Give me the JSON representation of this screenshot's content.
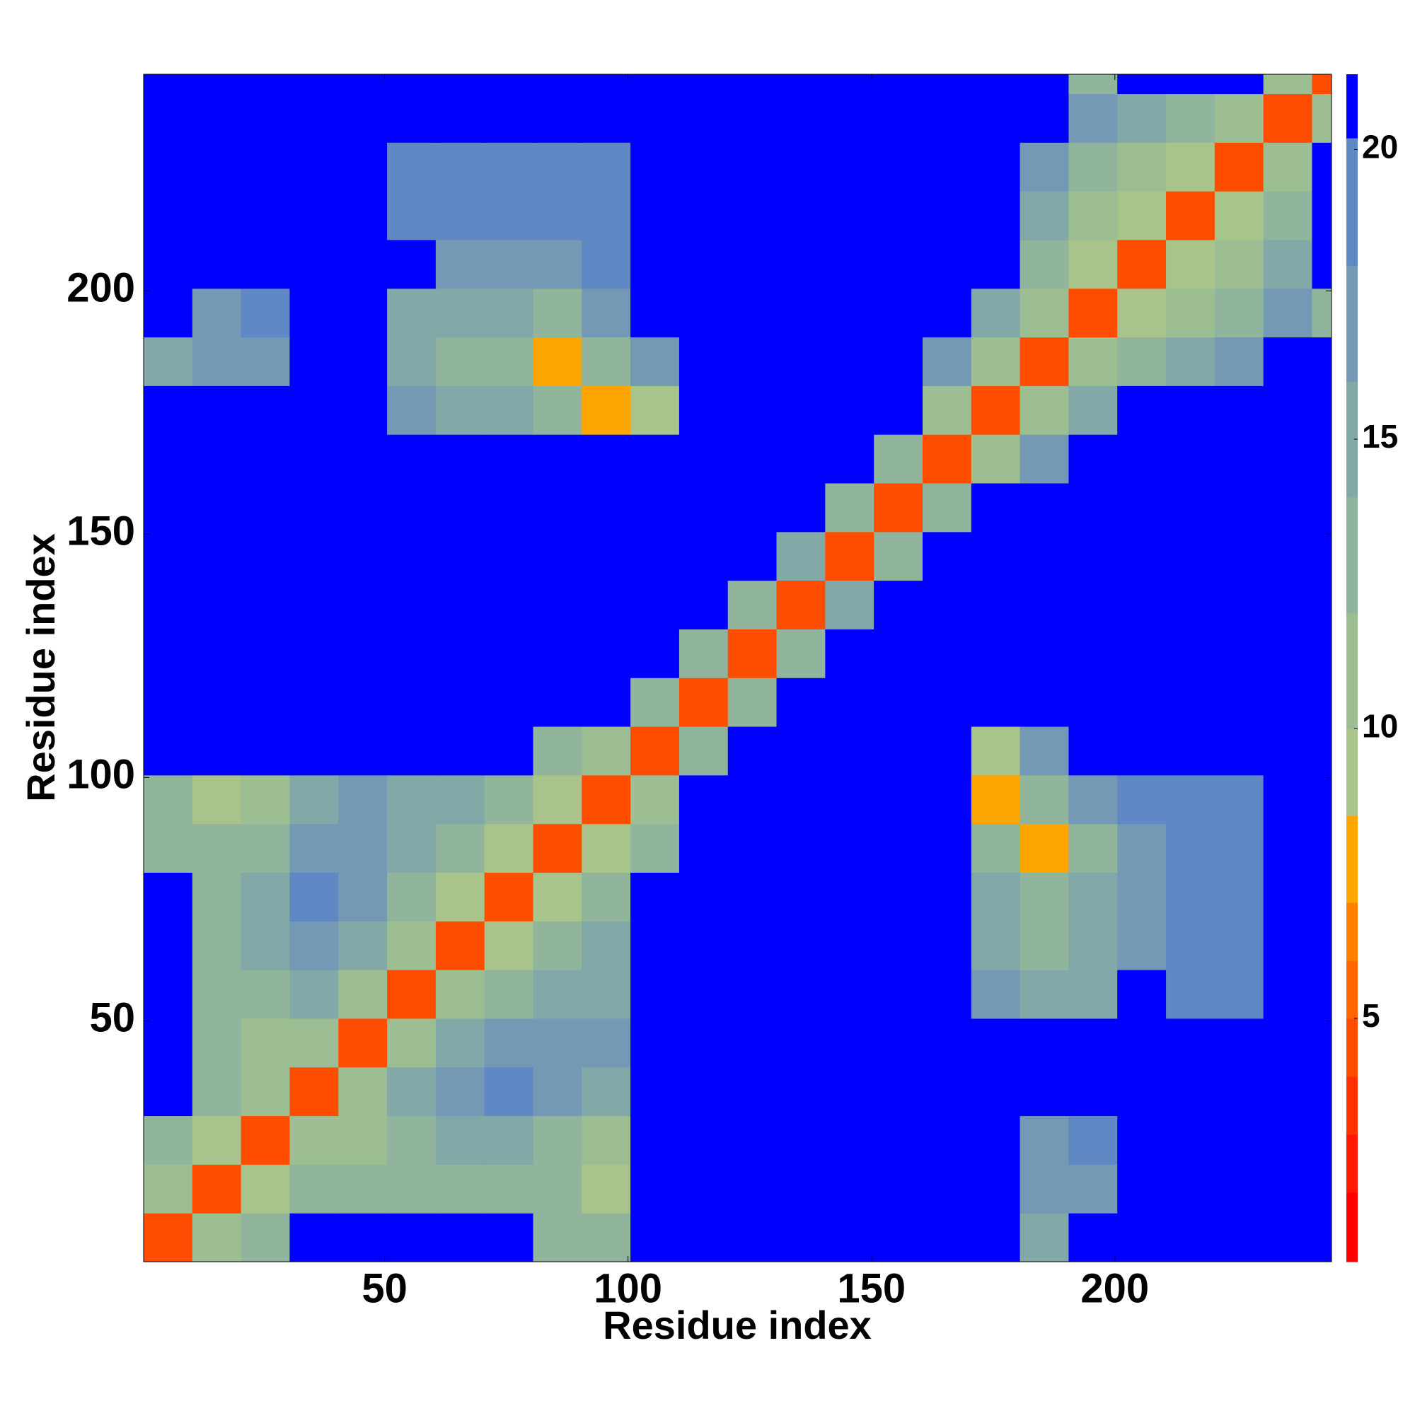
{
  "chart_data": {
    "type": "heatmap",
    "x_label": "Residue index",
    "y_label": "Residue index",
    "x_bins": [
      0.5,
      10.5,
      20.5,
      30.5,
      40.5,
      50.5,
      60.5,
      70.5,
      80.5,
      90.5,
      100.5,
      110.5,
      120.5,
      130.5,
      140.5,
      150.5,
      160.5,
      170.5,
      180.5,
      190.5,
      200.5,
      210.5,
      220.5,
      230.5,
      240.5,
      244.5
    ],
    "y_bins": [
      0.5,
      10.5,
      20.5,
      30.5,
      40.5,
      50.5,
      60.5,
      70.5,
      80.5,
      90.5,
      100.5,
      110.5,
      120.5,
      130.5,
      140.5,
      150.5,
      160.5,
      170.5,
      180.5,
      190.5,
      200.5,
      210.5,
      220.5,
      230.5,
      240.5,
      244.5
    ],
    "z": [
      [
        5,
        12,
        14,
        21,
        21,
        21,
        21,
        21,
        14,
        13,
        21,
        21,
        21,
        21,
        21,
        21,
        21,
        21,
        16,
        21,
        21,
        21,
        21,
        21,
        21
      ],
      [
        12,
        5,
        9,
        14,
        13,
        13,
        14,
        14,
        13,
        9,
        21,
        21,
        21,
        21,
        21,
        21,
        21,
        21,
        17,
        18,
        21,
        21,
        21,
        21,
        21
      ],
      [
        14,
        9,
        5,
        12,
        11,
        14,
        15,
        15,
        14,
        12,
        21,
        21,
        21,
        21,
        21,
        21,
        21,
        21,
        18,
        19,
        21,
        21,
        21,
        21,
        21
      ],
      [
        21,
        14,
        12,
        5,
        11,
        16,
        18,
        19,
        17,
        16,
        21,
        21,
        21,
        21,
        21,
        21,
        21,
        21,
        21,
        21,
        21,
        21,
        21,
        21,
        21
      ],
      [
        21,
        13,
        11,
        11,
        5,
        11,
        15,
        17,
        17,
        18,
        21,
        21,
        21,
        21,
        21,
        21,
        21,
        21,
        21,
        21,
        21,
        21,
        21,
        21,
        21
      ],
      [
        21,
        13,
        14,
        16,
        11,
        5,
        11,
        14,
        15,
        16,
        21,
        21,
        21,
        21,
        21,
        21,
        21,
        17,
        15,
        16,
        21,
        19,
        20,
        21,
        21
      ],
      [
        21,
        14,
        15,
        18,
        15,
        11,
        5,
        10,
        13,
        15,
        21,
        21,
        21,
        21,
        21,
        21,
        21,
        16,
        14,
        15,
        18,
        19,
        19,
        21,
        21
      ],
      [
        21,
        14,
        15,
        19,
        17,
        14,
        10,
        5,
        10,
        13,
        21,
        21,
        21,
        21,
        21,
        21,
        21,
        15,
        13,
        15,
        18,
        19,
        19,
        21,
        21
      ],
      [
        14,
        13,
        14,
        17,
        17,
        15,
        13,
        10,
        5,
        9,
        13,
        21,
        21,
        21,
        21,
        21,
        21,
        13,
        8,
        14,
        17,
        19,
        19,
        21,
        21
      ],
      [
        13,
        9,
        12,
        16,
        18,
        16,
        15,
        13,
        9,
        5,
        11,
        21,
        21,
        21,
        21,
        21,
        21,
        8,
        13,
        17,
        19,
        19,
        20,
        21,
        21
      ],
      [
        21,
        21,
        21,
        21,
        21,
        21,
        21,
        21,
        13,
        11,
        5,
        13,
        21,
        21,
        21,
        21,
        21,
        9,
        17,
        21,
        21,
        21,
        21,
        21,
        21
      ],
      [
        21,
        21,
        21,
        21,
        21,
        21,
        21,
        21,
        21,
        21,
        13,
        5,
        14,
        21,
        21,
        21,
        21,
        21,
        21,
        21,
        21,
        21,
        21,
        21,
        21
      ],
      [
        21,
        21,
        21,
        21,
        21,
        21,
        21,
        21,
        21,
        21,
        21,
        14,
        5,
        14,
        21,
        21,
        21,
        21,
        21,
        21,
        21,
        21,
        21,
        21,
        21
      ],
      [
        21,
        21,
        21,
        21,
        21,
        21,
        21,
        21,
        21,
        21,
        21,
        21,
        14,
        5,
        15,
        21,
        21,
        21,
        21,
        21,
        21,
        21,
        21,
        21,
        21
      ],
      [
        21,
        21,
        21,
        21,
        21,
        21,
        21,
        21,
        21,
        21,
        21,
        21,
        21,
        15,
        5,
        14,
        21,
        21,
        21,
        21,
        21,
        21,
        21,
        21,
        21
      ],
      [
        21,
        21,
        21,
        21,
        21,
        21,
        21,
        21,
        21,
        21,
        21,
        21,
        21,
        21,
        14,
        5,
        13,
        21,
        21,
        21,
        21,
        21,
        21,
        21,
        21
      ],
      [
        21,
        21,
        21,
        21,
        21,
        21,
        21,
        21,
        21,
        21,
        21,
        21,
        21,
        21,
        21,
        13,
        5,
        12,
        18,
        21,
        21,
        21,
        21,
        21,
        21
      ],
      [
        21,
        21,
        21,
        21,
        21,
        17,
        16,
        15,
        13,
        8,
        9,
        21,
        21,
        21,
        21,
        21,
        12,
        5,
        12,
        16,
        21,
        21,
        21,
        21,
        21
      ],
      [
        16,
        17,
        18,
        21,
        21,
        15,
        14,
        13,
        8,
        13,
        17,
        21,
        21,
        21,
        21,
        21,
        18,
        12,
        5,
        11,
        13,
        16,
        18,
        21,
        21
      ],
      [
        21,
        18,
        19,
        21,
        21,
        16,
        15,
        15,
        14,
        17,
        21,
        21,
        21,
        21,
        21,
        21,
        21,
        16,
        11,
        5,
        10,
        12,
        14,
        17,
        13
      ],
      [
        21,
        21,
        21,
        21,
        21,
        21,
        18,
        18,
        17,
        19,
        21,
        21,
        21,
        21,
        21,
        21,
        21,
        21,
        13,
        10,
        5,
        10,
        12,
        16,
        21
      ],
      [
        21,
        21,
        21,
        21,
        21,
        19,
        19,
        19,
        19,
        19,
        21,
        21,
        21,
        21,
        21,
        21,
        21,
        21,
        16,
        12,
        10,
        5,
        10,
        14,
        21
      ],
      [
        21,
        21,
        21,
        21,
        21,
        20,
        19,
        19,
        19,
        20,
        21,
        21,
        21,
        21,
        21,
        21,
        21,
        21,
        18,
        14,
        12,
        10,
        5,
        11,
        21
      ],
      [
        21,
        21,
        21,
        21,
        21,
        21,
        21,
        21,
        21,
        21,
        21,
        21,
        21,
        21,
        21,
        21,
        21,
        21,
        21,
        17,
        16,
        14,
        11,
        5,
        12
      ],
      [
        21,
        21,
        21,
        21,
        21,
        21,
        21,
        21,
        21,
        21,
        21,
        21,
        21,
        21,
        21,
        21,
        21,
        21,
        21,
        13,
        21,
        21,
        21,
        12,
        5
      ]
    ],
    "xlim": [
      0.5,
      244.5
    ],
    "ylim": [
      0.5,
      244.5
    ],
    "xticks": [
      50,
      100,
      150,
      200
    ],
    "yticks": [
      50,
      100,
      150,
      200
    ],
    "colorbar": {
      "clim": [
        0.8,
        21.3
      ],
      "ticks": [
        5,
        10,
        15,
        20
      ],
      "levels": [
        0.8,
        2,
        3,
        4,
        5,
        6,
        7,
        8.5,
        10,
        12,
        14,
        16,
        18,
        20.2,
        21.3
      ],
      "colors": [
        "#ff0000",
        "#ff1a00",
        "#ff3300",
        "#ff4d00",
        "#ff6600",
        "#ff8000",
        "#ffa500",
        "#a8c48a",
        "#9dbe92",
        "#90b49c",
        "#82a8a8",
        "#7399b4",
        "#5f88c4",
        "#0000ff"
      ]
    }
  }
}
